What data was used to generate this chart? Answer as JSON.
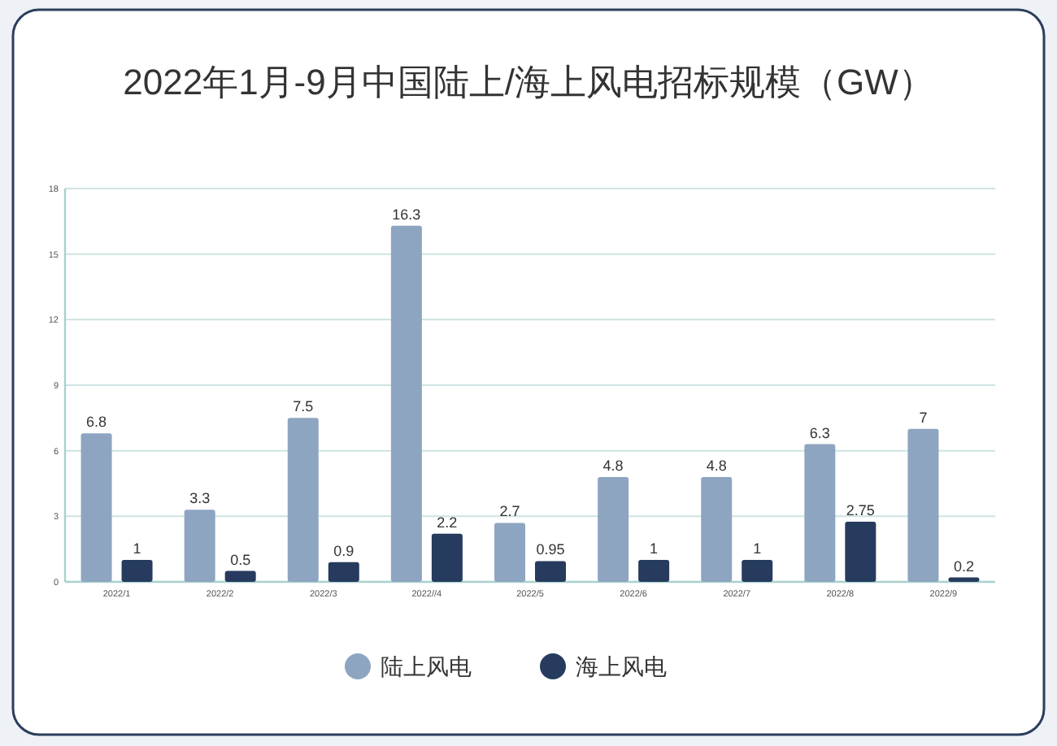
{
  "chart_data": {
    "type": "bar",
    "title": "2022年1月-9月中国陆上/海上风电招标规模（GW）",
    "categories": [
      "2022/1",
      "2022/2",
      "2022/3",
      "2022//4",
      "2022/5",
      "2022/6",
      "2022/7",
      "2022/8",
      "2022/9"
    ],
    "series": [
      {
        "name": "陆上风电",
        "color": "#8ea5c1",
        "values": [
          6.8,
          3.3,
          7.5,
          16.3,
          2.7,
          4.8,
          4.8,
          6.3,
          7
        ]
      },
      {
        "name": "海上风电",
        "color": "#263b5e",
        "values": [
          1,
          0.5,
          0.9,
          2.2,
          0.95,
          1,
          1,
          2.75,
          0.2
        ]
      }
    ],
    "ylim": [
      0,
      18
    ],
    "yticks": [
      0,
      3,
      6,
      9,
      12,
      15,
      18
    ],
    "grid": "y",
    "legend": "bottom",
    "data_labels": true
  }
}
